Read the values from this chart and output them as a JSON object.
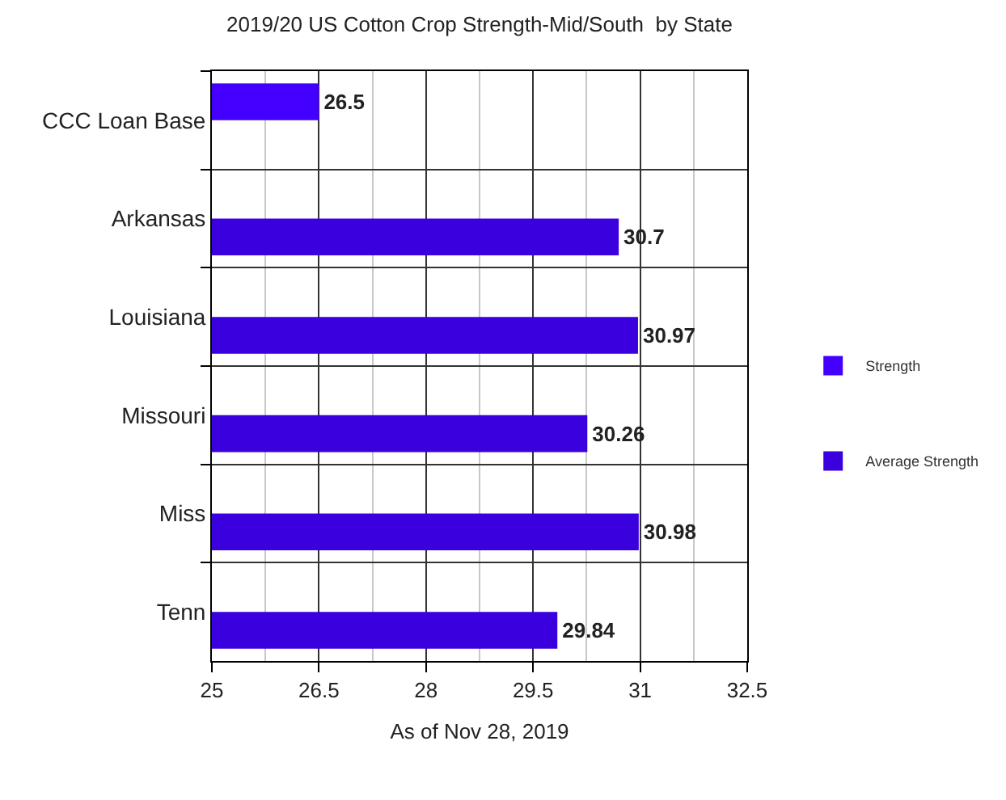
{
  "chart_data": {
    "type": "bar",
    "orientation": "horizontal",
    "title": "2019/20 US Cotton Crop Strength-Mid/South  by State",
    "xlabel": "As of Nov 28, 2019",
    "categories": [
      "CCC Loan Base",
      "Arkansas",
      "Louisiana",
      "Missouri",
      "Miss",
      "Tenn"
    ],
    "series": [
      {
        "name": "Strength",
        "color": "#4400ff",
        "values": [
          26.5,
          null,
          null,
          null,
          null,
          null
        ]
      },
      {
        "name": "Average Strength",
        "color": "#3a00dd",
        "values": [
          null,
          30.7,
          30.97,
          30.26,
          30.98,
          29.84
        ]
      }
    ],
    "xlim": [
      25,
      32.5
    ],
    "xticks": [
      25,
      {
        "value": 25.75,
        "label": null
      },
      26.5,
      {
        "value": 27.25,
        "label": null
      },
      28,
      {
        "value": 28.75,
        "label": null
      },
      29.5,
      {
        "value": 30.25,
        "label": null
      },
      31,
      {
        "value": 31.75,
        "label": null
      },
      32.5
    ],
    "grid": true,
    "legend": "right",
    "data_labels": true
  }
}
